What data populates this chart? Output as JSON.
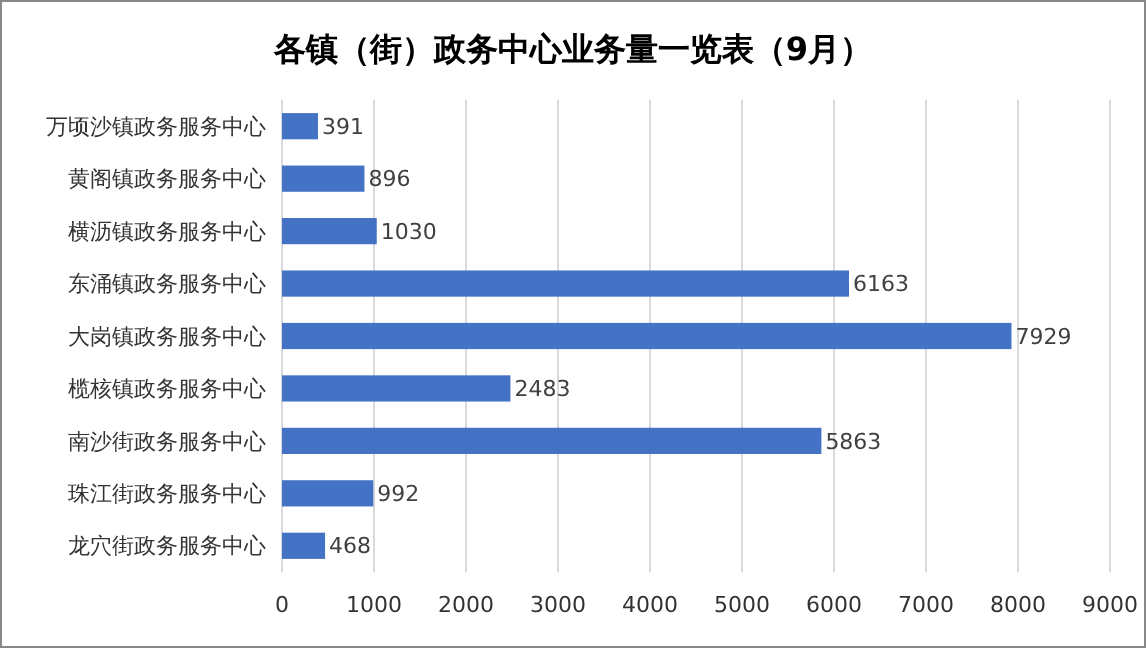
{
  "chart_data": {
    "type": "bar",
    "orientation": "horizontal",
    "title": "各镇（街）政务中心业务量一览表（9月）",
    "categories": [
      "万顷沙镇政务服务中心",
      "黄阁镇政务服务中心",
      "横沥镇政务服务中心",
      "东涌镇政务服务中心",
      "大岗镇政务服务中心",
      "榄核镇政务服务中心",
      "南沙街政务服务中心",
      "珠江街政务服务中心",
      "龙穴街政务服务中心"
    ],
    "values": [
      391,
      896,
      1030,
      6163,
      7929,
      2483,
      5863,
      992,
      468
    ],
    "color": "#4472c4",
    "xlim": [
      0,
      9000
    ],
    "xticks": [
      0,
      1000,
      2000,
      3000,
      4000,
      5000,
      6000,
      7000,
      8000,
      9000
    ],
    "grid": "x",
    "data_labels": true
  }
}
